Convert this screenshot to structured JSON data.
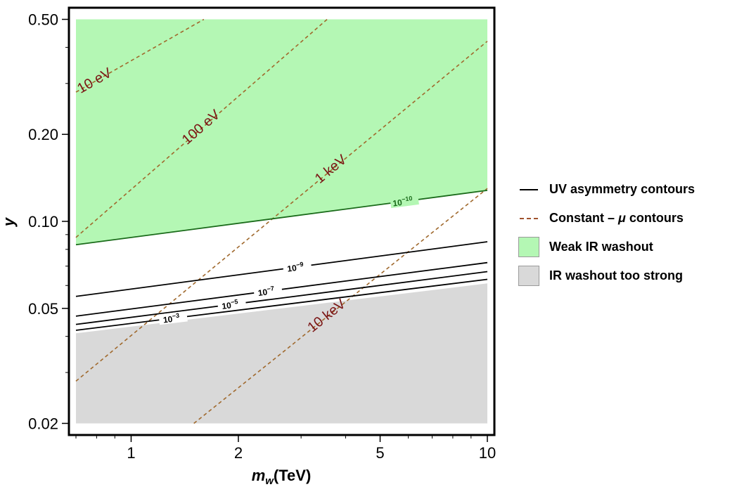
{
  "chart_data": {
    "type": "line",
    "xlabel_main": "m",
    "xlabel_sub": "w",
    "xlabel_unit": "(TeV)",
    "ylabel": "y",
    "x_scale": "log",
    "y_scale": "log",
    "xlim": [
      0.7,
      10
    ],
    "ylim": [
      0.0195,
      0.51
    ],
    "x_ticks": [
      {
        "v": 1,
        "label": "1"
      },
      {
        "v": 2,
        "label": "2"
      },
      {
        "v": 5,
        "label": "5"
      },
      {
        "v": 10,
        "label": "10"
      }
    ],
    "y_ticks": [
      {
        "v": 0.02,
        "label": "0.02"
      },
      {
        "v": 0.05,
        "label": "0.05"
      },
      {
        "v": 0.1,
        "label": "0.10"
      },
      {
        "v": 0.2,
        "label": "0.20"
      },
      {
        "v": 0.5,
        "label": "0.50"
      }
    ],
    "regions": [
      {
        "name": "Weak IR washout",
        "color": "#b4f7b4",
        "x": [
          0.7,
          10
        ],
        "y_low": [
          0.083,
          0.128
        ],
        "y_high": [
          0.5,
          0.5
        ]
      },
      {
        "name": "IR washout too strong",
        "color": "#d9d9d9",
        "x": [
          0.7,
          10
        ],
        "y_low": [
          0.02,
          0.02
        ],
        "y_high": [
          0.041,
          0.061
        ]
      }
    ],
    "uv_contours": [
      {
        "level": "10",
        "exp": "−10",
        "color": "#1a6b1a",
        "x": [
          0.7,
          10
        ],
        "y": [
          0.083,
          0.128
        ],
        "label_x": 5.8
      },
      {
        "level": "10",
        "exp": "−9",
        "color": "#000000",
        "x": [
          0.7,
          10
        ],
        "y": [
          0.055,
          0.085
        ],
        "label_x": 2.9
      },
      {
        "level": "10",
        "exp": "−7",
        "color": "#000000",
        "x": [
          0.7,
          10
        ],
        "y": [
          0.047,
          0.072
        ],
        "label_x": 2.4
      },
      {
        "level": "10",
        "exp": "−5",
        "color": "#000000",
        "x": [
          0.7,
          10
        ],
        "y": [
          0.044,
          0.067
        ],
        "label_x": 1.9
      },
      {
        "level": "10",
        "exp": "−3",
        "color": "#000000",
        "x": [
          0.7,
          10
        ],
        "y": [
          0.042,
          0.063
        ],
        "label_x": 1.3
      }
    ],
    "mu_contours": [
      {
        "label": "10 eV",
        "x": [
          0.7,
          1.6
        ],
        "y": [
          0.28,
          0.5
        ],
        "label_x": 0.8
      },
      {
        "label": "100 eV",
        "x": [
          0.7,
          3.55
        ],
        "y": [
          0.088,
          0.5
        ],
        "label_x": 1.6
      },
      {
        "label": "1 keV",
        "x": [
          0.7,
          10
        ],
        "y": [
          0.028,
          0.42
        ],
        "label_x": 3.7
      },
      {
        "label": "10 keV",
        "x": [
          1.5,
          10
        ],
        "y": [
          0.02,
          0.13
        ],
        "label_x": 3.6
      }
    ],
    "legend": [
      {
        "type": "line",
        "label": "UV asymmetry contours"
      },
      {
        "type": "dash",
        "label_main": "Constant – ",
        "label_mu": "μ",
        "label_tail": " contours"
      },
      {
        "type": "box",
        "color": "#b4f7b4",
        "label": "Weak IR washout"
      },
      {
        "type": "box",
        "color": "#d9d9d9",
        "label": "IR washout too strong"
      }
    ]
  }
}
